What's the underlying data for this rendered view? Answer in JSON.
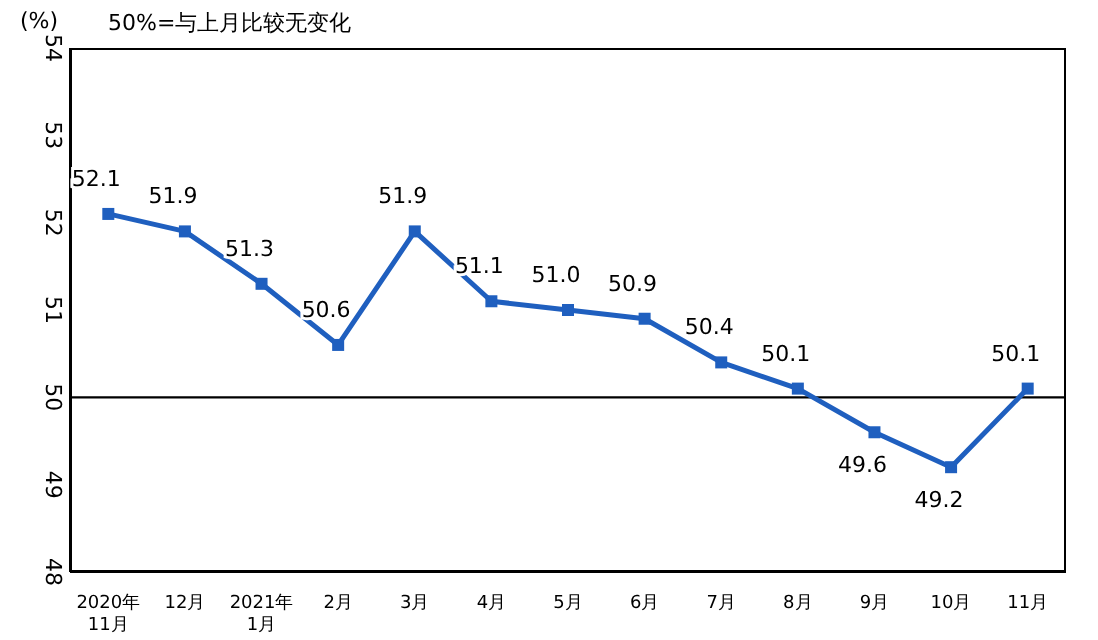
{
  "chart_data": {
    "type": "line",
    "ylabel": "(%)",
    "annotations": [
      "50%=与上月比较无变化"
    ],
    "categories": [
      "2020年\n11月",
      "12月",
      "2021年\n1月",
      "2月",
      "3月",
      "4月",
      "5月",
      "6月",
      "7月",
      "8月",
      "9月",
      "10月",
      "11月"
    ],
    "series": [
      {
        "color": "#1f5fbf",
        "values": [
          52.1,
          51.9,
          51.3,
          50.6,
          51.9,
          51.1,
          51.0,
          50.9,
          50.4,
          50.1,
          49.6,
          49.2,
          50.1
        ],
        "value_labels": [
          "52.1",
          "51.9",
          "51.3",
          "50.6",
          "51.9",
          "51.1",
          "51.0",
          "50.9",
          "50.4",
          "50.1",
          "49.6",
          "49.2",
          "50.1"
        ]
      }
    ],
    "ylim": [
      48,
      54
    ],
    "yticks": [
      48,
      49,
      50,
      51,
      52,
      53,
      54
    ],
    "ref_lines": [
      {
        "axis": "y",
        "value": 50,
        "color": "#000000"
      }
    ],
    "marker": "square",
    "line_style": "solid",
    "grid": false,
    "legend": false
  }
}
